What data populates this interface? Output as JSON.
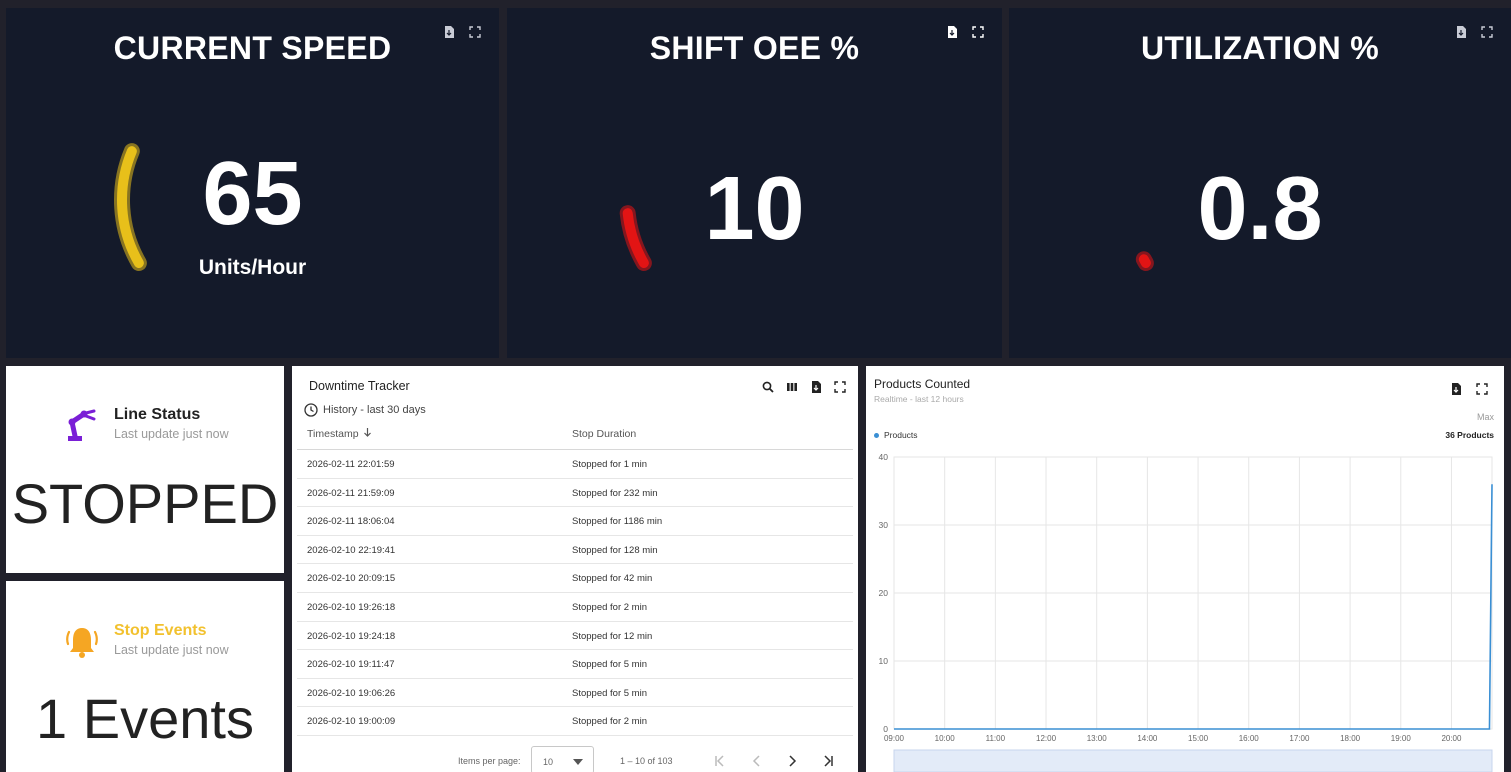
{
  "gauges": [
    {
      "title": "CURRENT SPEED",
      "value": "65",
      "unit": "Units/Hour",
      "fraction": 0.22,
      "color": "#e8c01a"
    },
    {
      "title": "SHIFT OEE %",
      "value": "10",
      "unit": "",
      "fraction": 0.1,
      "color": "#e21414"
    },
    {
      "title": "UTILIZATION %",
      "value": "0.8",
      "unit": "",
      "fraction": 0.008,
      "color": "#e21414"
    }
  ],
  "line_status": {
    "title": "Line Status",
    "subtitle": "Last update just now",
    "value": "STOPPED",
    "icon": "robot-arm-icon",
    "color": "#7a1fd6"
  },
  "stop_events": {
    "title": "Stop Events",
    "subtitle": "Last update just now",
    "value": "1 Events",
    "icon": "bell-icon",
    "color": "#f2c12e"
  },
  "downtime": {
    "title": "Downtime Tracker",
    "history": "History - last 30 days",
    "columns": [
      "Timestamp",
      "Stop Duration"
    ],
    "rows": [
      [
        "2026-02-11 22:01:59",
        "Stopped for 1 min"
      ],
      [
        "2026-02-11 21:59:09",
        "Stopped for 232 min"
      ],
      [
        "2026-02-11 18:06:04",
        "Stopped for 1186 min"
      ],
      [
        "2026-02-10 22:19:41",
        "Stopped for 128 min"
      ],
      [
        "2026-02-10 20:09:15",
        "Stopped for 42 min"
      ],
      [
        "2026-02-10 19:26:18",
        "Stopped for 2 min"
      ],
      [
        "2026-02-10 19:24:18",
        "Stopped for 12 min"
      ],
      [
        "2026-02-10 19:11:47",
        "Stopped for 5 min"
      ],
      [
        "2026-02-10 19:06:26",
        "Stopped for 5 min"
      ],
      [
        "2026-02-10 19:00:09",
        "Stopped for 2 min"
      ]
    ],
    "pager": {
      "label": "Items per page:",
      "per_page": "10",
      "range": "1 – 10 of 103"
    }
  },
  "products_chart": {
    "title": "Products Counted",
    "subtitle": "Realtime - last 12 hours",
    "max_label": "Max",
    "legend_value": "36 Products"
  },
  "chart_data": {
    "type": "line",
    "title": "Products Counted",
    "series": [
      {
        "name": "Products",
        "color": "#3a8fd4",
        "points": [
          [
            9.0,
            0
          ],
          [
            20.75,
            0
          ],
          [
            20.8,
            36
          ]
        ]
      }
    ],
    "x_ticks": [
      "09:00",
      "10:00",
      "11:00",
      "12:00",
      "13:00",
      "14:00",
      "15:00",
      "16:00",
      "17:00",
      "18:00",
      "19:00",
      "20:00"
    ],
    "xlim": [
      9.0,
      20.8
    ],
    "y_ticks": [
      0,
      10,
      20,
      30,
      40
    ],
    "ylim": [
      0,
      40
    ],
    "grid": true,
    "legend": "top-left"
  }
}
